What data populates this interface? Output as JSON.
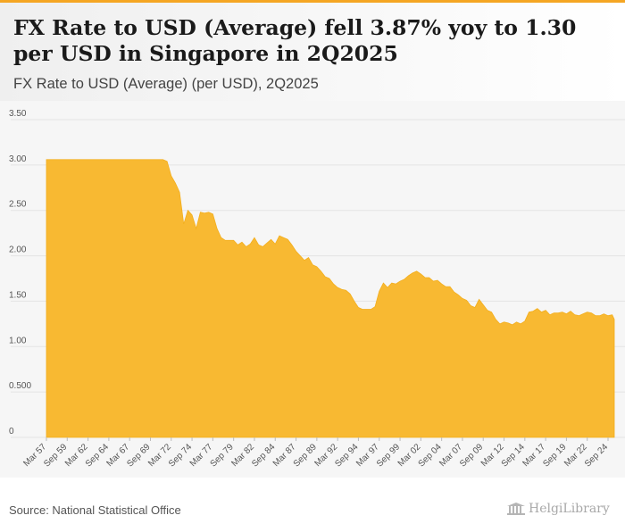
{
  "header": {
    "title": "FX Rate to USD (Average) fell 3.87% yoy to 1.30 per USD in Singapore in 2Q2025",
    "subtitle": "FX Rate to USD (Average) (per USD), 2Q2025"
  },
  "footer": {
    "source": "Source: National Statistical Office",
    "logo": "HelgiLibrary"
  },
  "colors": {
    "area": "#f8b932",
    "grid": "#e4e4e4",
    "axis_text": "#555555"
  },
  "chart_data": {
    "type": "area",
    "title": "FX Rate to USD (Average) (per USD), 2Q2025",
    "xlabel": "",
    "ylabel": "",
    "ylim": [
      0,
      3.5
    ],
    "grid": true,
    "legend": "none",
    "y_ticks": [
      "0",
      "0.500",
      "1.00",
      "1.50",
      "2.00",
      "2.50",
      "3.00",
      "3.50"
    ],
    "y_tick_values": [
      0,
      0.5,
      1.0,
      1.5,
      2.0,
      2.5,
      3.0,
      3.5
    ],
    "x_tick_labels": [
      "Mar 57",
      "Sep 59",
      "Mar 62",
      "Sep 64",
      "Mar 67",
      "Sep 69",
      "Mar 72",
      "Sep 74",
      "Mar 77",
      "Sep 79",
      "Mar 82",
      "Sep 84",
      "Mar 87",
      "Sep 89",
      "Mar 92",
      "Sep 94",
      "Mar 97",
      "Sep 99",
      "Mar 02",
      "Sep 04",
      "Mar 07",
      "Sep 09",
      "Mar 12",
      "Sep 14",
      "Mar 17",
      "Sep 19",
      "Mar 22",
      "Sep 24"
    ],
    "x_tick_times": [
      1957.0,
      1959.5,
      1962.0,
      1964.5,
      1967.0,
      1969.5,
      1972.0,
      1974.5,
      1977.0,
      1979.5,
      1982.0,
      1984.5,
      1987.0,
      1989.5,
      1992.0,
      1994.5,
      1997.0,
      1999.5,
      2002.0,
      2004.5,
      2007.0,
      2009.5,
      2012.0,
      2014.5,
      2017.0,
      2019.5,
      2022.0,
      2024.5
    ],
    "x": [
      1957.0,
      1971.0,
      1971.5,
      1972.0,
      1972.5,
      1973.0,
      1973.5,
      1974.0,
      1974.5,
      1975.0,
      1975.5,
      1976.0,
      1976.5,
      1977.0,
      1977.5,
      1978.0,
      1978.5,
      1979.0,
      1979.5,
      1980.0,
      1980.5,
      1981.0,
      1981.5,
      1982.0,
      1982.5,
      1983.0,
      1983.5,
      1984.0,
      1984.5,
      1985.0,
      1985.5,
      1986.0,
      1986.5,
      1987.0,
      1987.5,
      1988.0,
      1988.5,
      1989.0,
      1989.5,
      1990.0,
      1990.5,
      1991.0,
      1991.5,
      1992.0,
      1992.5,
      1993.0,
      1993.5,
      1994.0,
      1994.5,
      1995.0,
      1995.5,
      1996.0,
      1996.5,
      1997.0,
      1997.5,
      1998.0,
      1998.5,
      1999.0,
      1999.5,
      2000.0,
      2000.5,
      2001.0,
      2001.5,
      2002.0,
      2002.5,
      2003.0,
      2003.5,
      2004.0,
      2004.5,
      2005.0,
      2005.5,
      2006.0,
      2006.5,
      2007.0,
      2007.5,
      2008.0,
      2008.5,
      2009.0,
      2009.5,
      2010.0,
      2010.5,
      2011.0,
      2011.5,
      2012.0,
      2012.5,
      2013.0,
      2013.5,
      2014.0,
      2014.5,
      2015.0,
      2015.5,
      2016.0,
      2016.5,
      2017.0,
      2017.5,
      2018.0,
      2018.5,
      2019.0,
      2019.5,
      2020.0,
      2020.5,
      2021.0,
      2021.5,
      2022.0,
      2022.5,
      2023.0,
      2023.5,
      2024.0,
      2024.5,
      2025.0,
      2025.25
    ],
    "values": [
      3.06,
      3.06,
      3.04,
      2.88,
      2.8,
      2.7,
      2.35,
      2.5,
      2.45,
      2.3,
      2.48,
      2.47,
      2.48,
      2.46,
      2.3,
      2.2,
      2.17,
      2.17,
      2.17,
      2.12,
      2.15,
      2.1,
      2.13,
      2.2,
      2.12,
      2.1,
      2.14,
      2.18,
      2.13,
      2.22,
      2.2,
      2.18,
      2.12,
      2.05,
      2.0,
      1.95,
      1.98,
      1.9,
      1.88,
      1.83,
      1.77,
      1.75,
      1.69,
      1.65,
      1.63,
      1.62,
      1.58,
      1.5,
      1.43,
      1.41,
      1.41,
      1.41,
      1.44,
      1.61,
      1.7,
      1.65,
      1.7,
      1.69,
      1.72,
      1.74,
      1.78,
      1.81,
      1.83,
      1.8,
      1.76,
      1.76,
      1.72,
      1.73,
      1.69,
      1.66,
      1.66,
      1.6,
      1.57,
      1.53,
      1.51,
      1.45,
      1.43,
      1.52,
      1.46,
      1.4,
      1.38,
      1.3,
      1.25,
      1.27,
      1.26,
      1.24,
      1.27,
      1.25,
      1.28,
      1.38,
      1.39,
      1.42,
      1.38,
      1.4,
      1.35,
      1.37,
      1.37,
      1.38,
      1.36,
      1.39,
      1.35,
      1.34,
      1.36,
      1.38,
      1.37,
      1.34,
      1.34,
      1.36,
      1.34,
      1.35,
      1.3
    ]
  }
}
